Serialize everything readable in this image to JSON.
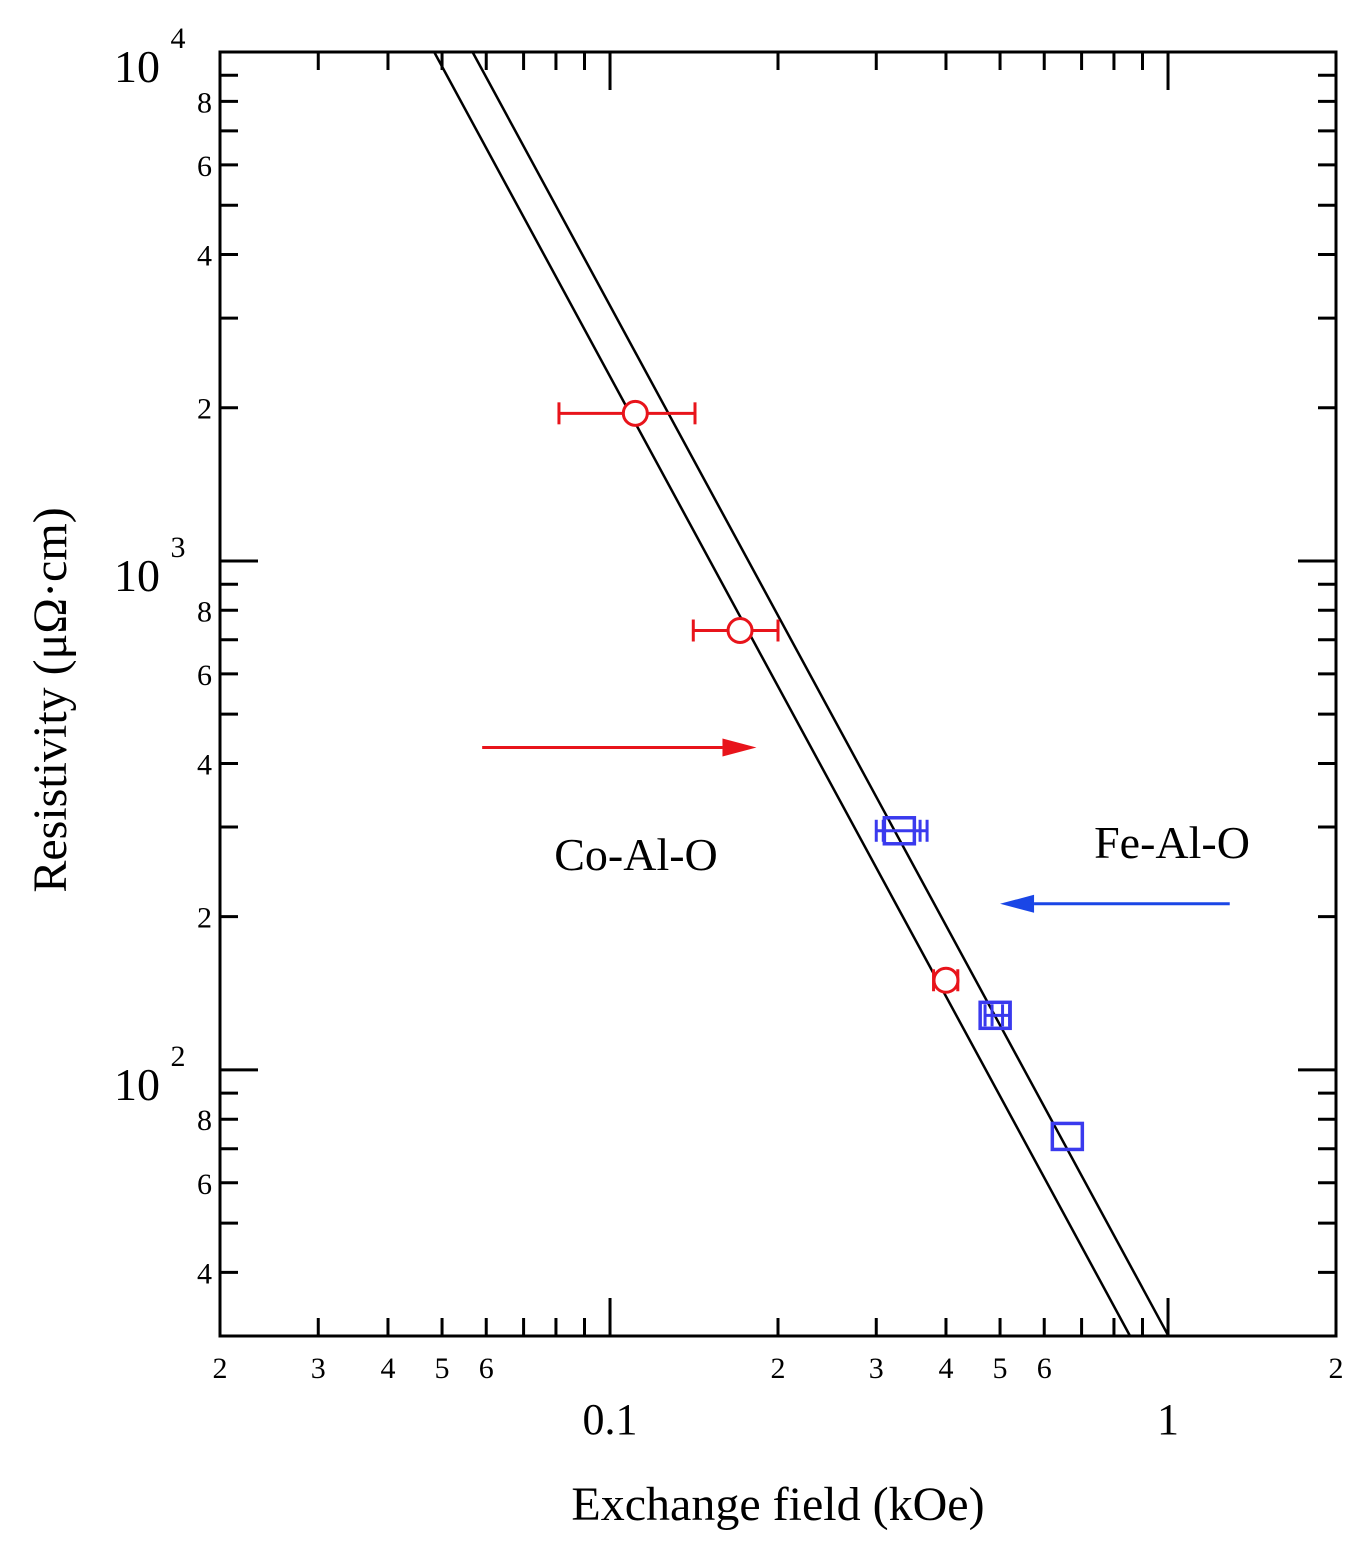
{
  "chart_data": {
    "type": "scatter",
    "title": "",
    "xlabel": "Exchange field (kOe)",
    "ylabel": "Resistivity (μΩ·cm)",
    "xscale": "log",
    "yscale": "log",
    "xlim": [
      0.02,
      2
    ],
    "ylim": [
      30,
      10000
    ],
    "x_major_tick_labels": [
      {
        "value": 0.1,
        "label": "0.1"
      },
      {
        "value": 1,
        "label": "1"
      }
    ],
    "x_minor_tick_labels": [
      {
        "value": 0.02,
        "label": "2"
      },
      {
        "value": 0.03,
        "label": "3"
      },
      {
        "value": 0.04,
        "label": "4"
      },
      {
        "value": 0.05,
        "label": "5"
      },
      {
        "value": 0.06,
        "label": "6"
      },
      {
        "value": 0.2,
        "label": "2"
      },
      {
        "value": 0.3,
        "label": "3"
      },
      {
        "value": 0.4,
        "label": "4"
      },
      {
        "value": 0.5,
        "label": "5"
      },
      {
        "value": 0.6,
        "label": "6"
      },
      {
        "value": 2,
        "label": "2"
      }
    ],
    "y_major_tick_labels": [
      {
        "value": 100,
        "base": "10",
        "exp": "2"
      },
      {
        "value": 1000,
        "base": "10",
        "exp": "3"
      },
      {
        "value": 10000,
        "base": "10",
        "exp": "4"
      }
    ],
    "y_minor_tick_labels": [
      {
        "value": 40,
        "label": "4"
      },
      {
        "value": 60,
        "label": "6"
      },
      {
        "value": 80,
        "label": "8"
      },
      {
        "value": 200,
        "label": "2"
      },
      {
        "value": 400,
        "label": "4"
      },
      {
        "value": 600,
        "label": "6"
      },
      {
        "value": 800,
        "label": "8"
      },
      {
        "value": 2000,
        "label": "2"
      },
      {
        "value": 4000,
        "label": "4"
      },
      {
        "value": 6000,
        "label": "6"
      },
      {
        "value": 8000,
        "label": "8"
      }
    ],
    "series": [
      {
        "name": "Co-Al-O",
        "marker": "circle",
        "color": "#e8141b",
        "points": [
          {
            "x": 0.111,
            "y": 1950,
            "xerr_low": 0.081,
            "xerr_high": 0.142
          },
          {
            "x": 0.171,
            "y": 730,
            "xerr_low": 0.141,
            "xerr_high": 0.2
          },
          {
            "x": 0.4,
            "y": 150,
            "xerr_low": 0.38,
            "xerr_high": 0.42
          }
        ]
      },
      {
        "name": "Fe-Al-O",
        "marker": "square",
        "color": "#3a3aee",
        "points": [
          {
            "x": 0.33,
            "y": 295,
            "xerr_low": 0.3,
            "xerr_high": 0.37
          },
          {
            "x": 0.49,
            "y": 128,
            "xerr_low": 0.47,
            "xerr_high": 0.52
          },
          {
            "x": 0.66,
            "y": 74,
            "xerr_low": 0.66,
            "xerr_high": 0.66
          }
        ]
      }
    ],
    "fit_lines": [
      {
        "name": "fit-line-lower",
        "points": [
          [
            0.0484,
            10000
          ],
          [
            0.855,
            30
          ]
        ]
      },
      {
        "name": "fit-line-upper",
        "points": [
          [
            0.0567,
            10000
          ],
          [
            1.002,
            30
          ]
        ]
      }
    ],
    "annotations": [
      {
        "name": "co-al-o-label",
        "text": "Co-Al-O",
        "color": "#000000"
      },
      {
        "name": "fe-al-o-label",
        "text": "Fe-Al-O",
        "color": "#000000"
      }
    ],
    "arrows": [
      {
        "name": "co-al-o-arrow",
        "color": "#e8141b",
        "direction": "right",
        "x_from": 0.059,
        "x_to": 0.183,
        "y": 430
      },
      {
        "name": "fe-al-o-arrow",
        "color": "#1a46e6",
        "direction": "left",
        "x_from": 1.29,
        "x_to": 0.5,
        "y": 212
      }
    ]
  }
}
